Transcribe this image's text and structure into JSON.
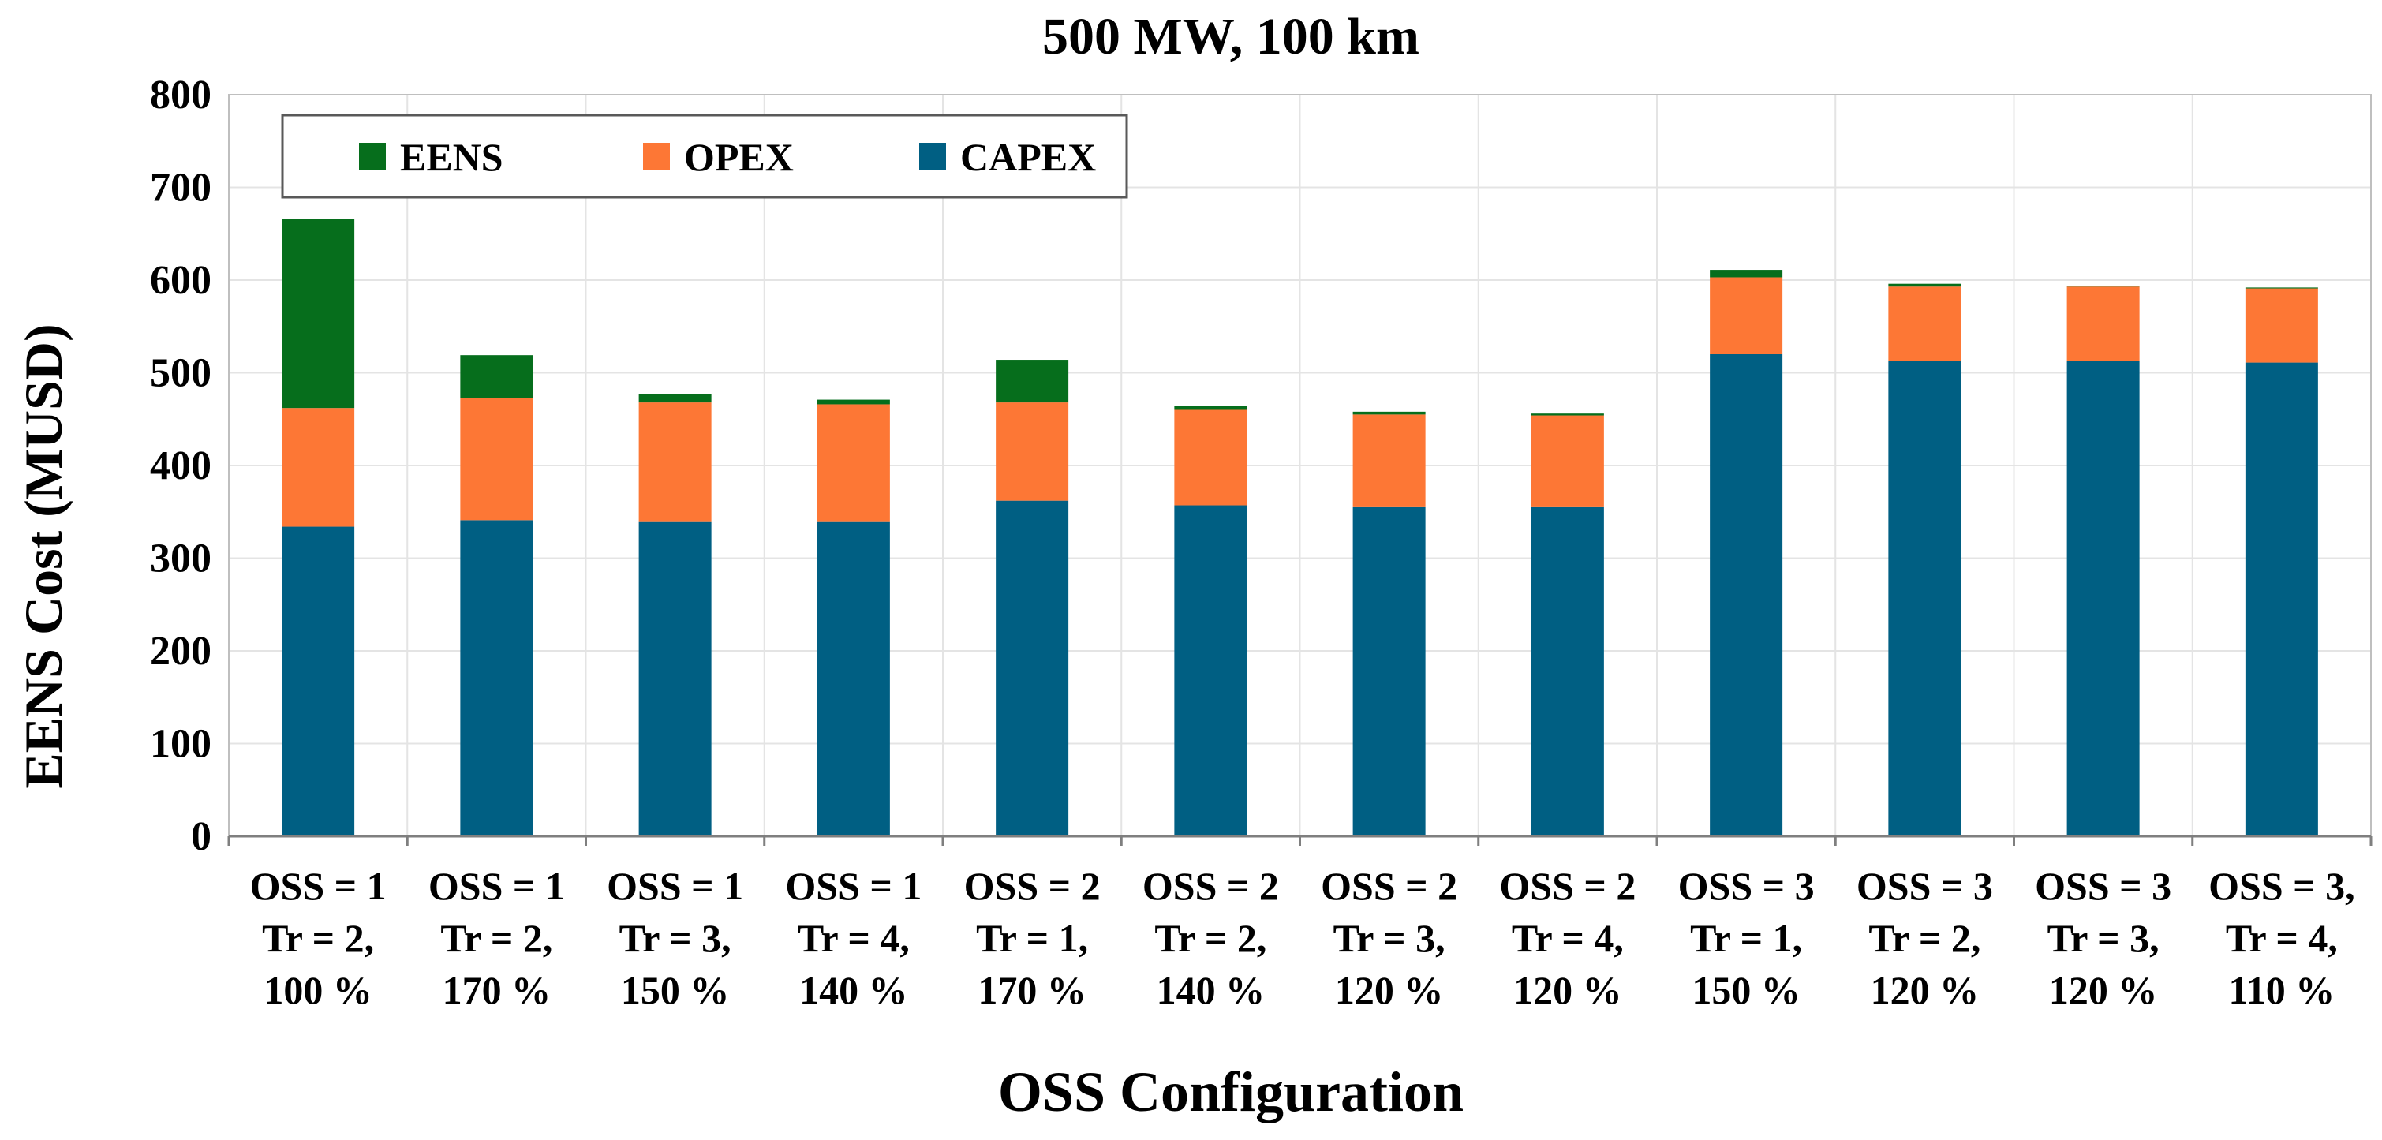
{
  "chart_data": {
    "type": "bar",
    "stacked": true,
    "title": "500 MW, 100 km",
    "xlabel": "OSS Configuration",
    "ylabel": "EENS Cost (MUSD)",
    "ylim": [
      0,
      800
    ],
    "yticks": [
      "0",
      "100",
      "200",
      "300",
      "400",
      "500",
      "600",
      "700",
      "800"
    ],
    "grid": true,
    "legend_position": "top-left",
    "categories": [
      [
        "OSS = 1",
        "Tr = 2,",
        "100 %"
      ],
      [
        "OSS = 1",
        "Tr = 2,",
        "170 %"
      ],
      [
        "OSS = 1",
        "Tr = 3,",
        "150 %"
      ],
      [
        "OSS = 1",
        "Tr = 4,",
        "140 %"
      ],
      [
        "OSS = 2",
        "Tr = 1,",
        "170 %"
      ],
      [
        "OSS = 2",
        "Tr = 2,",
        "140 %"
      ],
      [
        "OSS = 2",
        "Tr = 3,",
        "120 %"
      ],
      [
        "OSS = 2",
        "Tr = 4,",
        "120 %"
      ],
      [
        "OSS = 3",
        "Tr = 1,",
        "150 %"
      ],
      [
        "OSS = 3",
        "Tr = 2,",
        "120 %"
      ],
      [
        "OSS = 3",
        "Tr = 3,",
        "120 %"
      ],
      [
        "OSS = 3,",
        "Tr = 4,",
        "110 %"
      ]
    ],
    "series": [
      {
        "name": "CAPEX",
        "color": "#005f83",
        "values": [
          334,
          341,
          339,
          339,
          362,
          357,
          355,
          355,
          520,
          513,
          513,
          511
        ]
      },
      {
        "name": "OPEX",
        "color": "#fd7735",
        "values": [
          128,
          132,
          129,
          127,
          106,
          103,
          100,
          99,
          83,
          80,
          80,
          80
        ]
      },
      {
        "name": "EENS",
        "color": "#066e1c",
        "values": [
          204,
          46,
          9,
          5,
          46,
          4,
          3,
          2,
          8,
          3,
          1,
          1
        ]
      }
    ],
    "legend_order": [
      "EENS",
      "OPEX",
      "CAPEX"
    ]
  }
}
